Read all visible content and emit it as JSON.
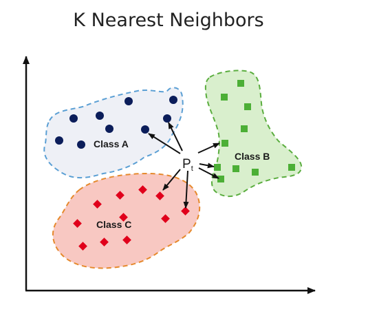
{
  "title": "K Nearest Neighbors",
  "query_point": {
    "label": "P",
    "subscript": "t"
  },
  "classes": [
    {
      "label": "Class A",
      "marker": "circle",
      "fill": "#0b1d5a",
      "region_fill": "#eef0f6",
      "region_stroke": "#5a9fd4"
    },
    {
      "label": "Class B",
      "marker": "square",
      "fill": "#4caf36",
      "region_fill": "#d9efcd",
      "region_stroke": "#5aad3e"
    },
    {
      "label": "Class C",
      "marker": "diamond",
      "fill": "#e0001b",
      "region_fill": "#f8c8c2",
      "region_stroke": "#e6892c"
    }
  ],
  "colors": {
    "axis": "#111111",
    "arrow": "#111111"
  }
}
